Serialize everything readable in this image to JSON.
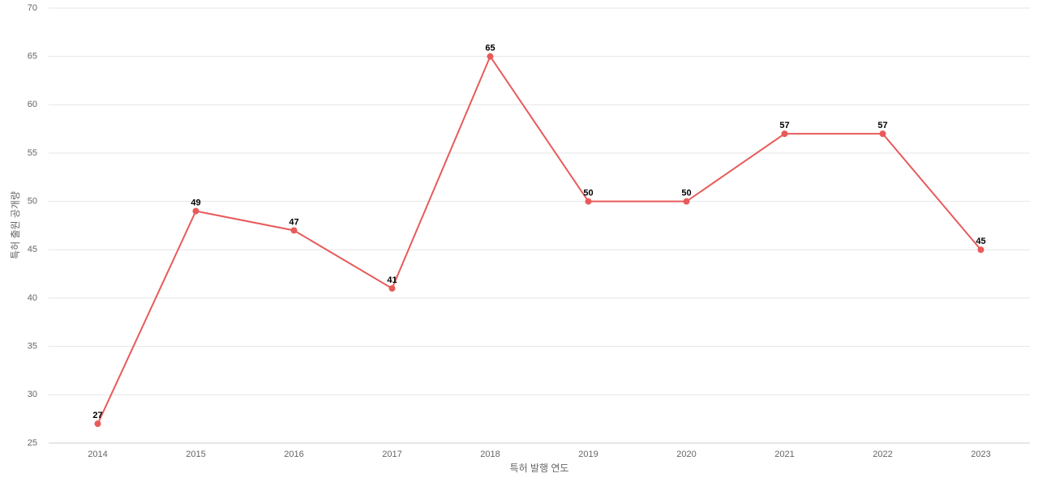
{
  "chart_data": {
    "type": "line",
    "x_label": "특허 발행 연도",
    "y_label": "특허 출원 공개량",
    "categories": [
      "2014",
      "2015",
      "2016",
      "2017",
      "2018",
      "2019",
      "2020",
      "2021",
      "2022",
      "2023"
    ],
    "values": [
      27,
      49,
      47,
      41,
      65,
      50,
      50,
      57,
      57,
      45
    ],
    "color": "#e85a5a",
    "ylim": [
      25,
      70
    ],
    "yticks": [
      25,
      30,
      35,
      40,
      45,
      50,
      55,
      60,
      65,
      70
    ],
    "grid": true
  }
}
